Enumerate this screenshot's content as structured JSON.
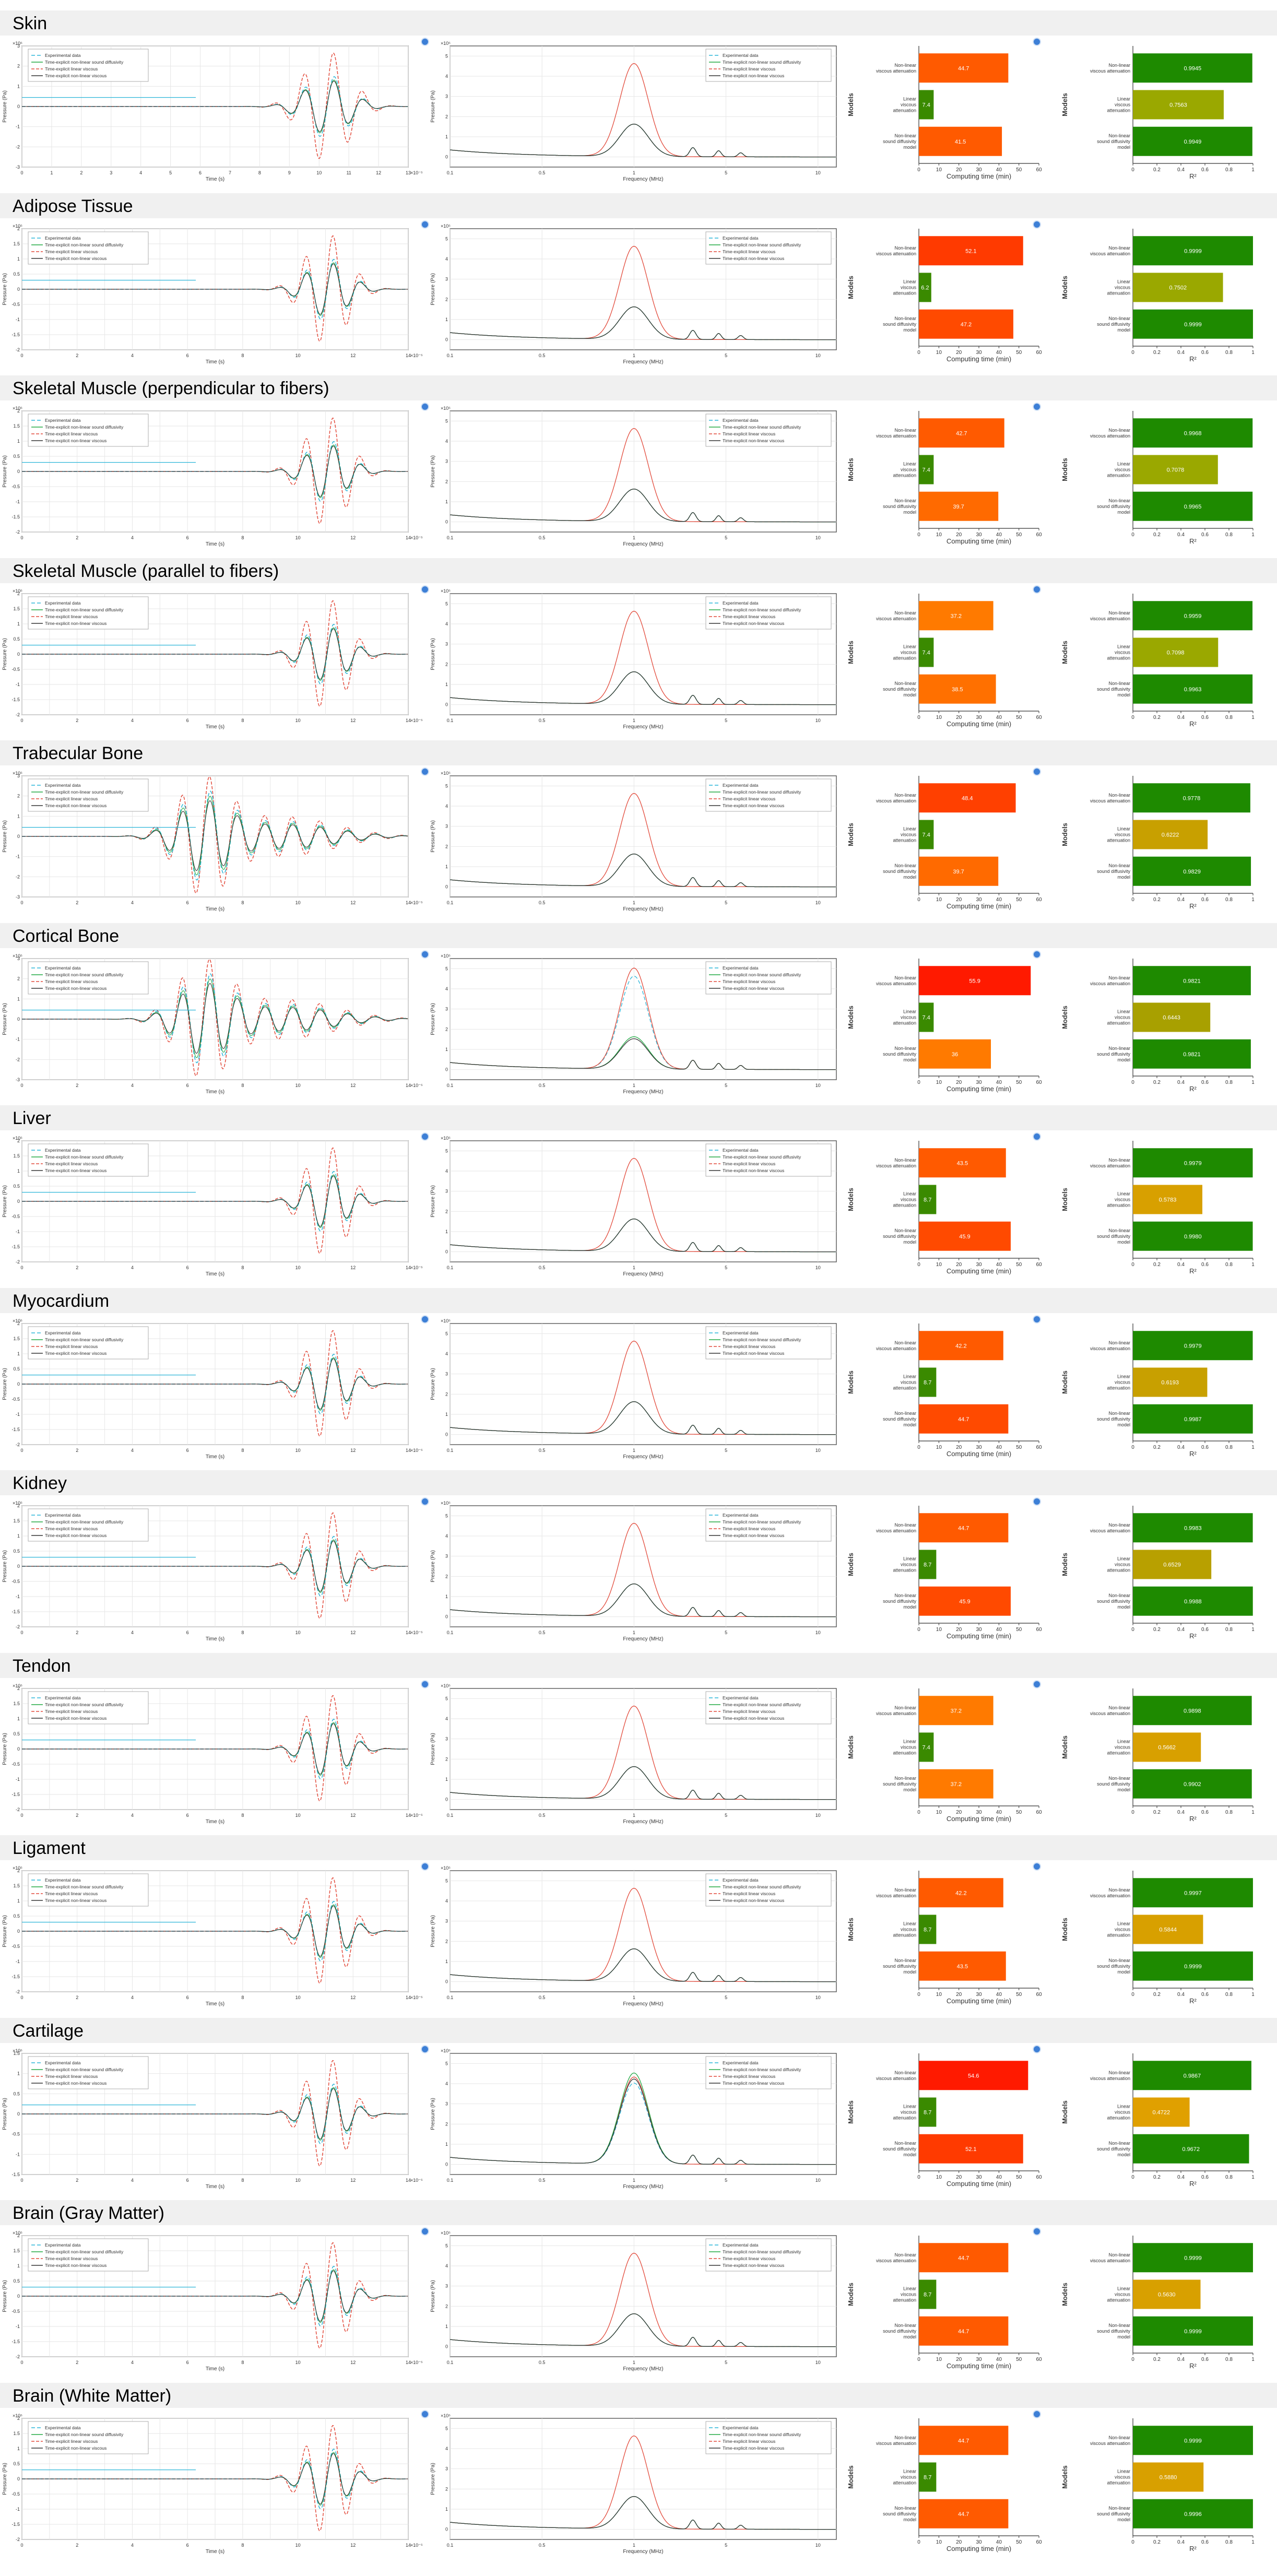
{
  "labels": {
    "legend": [
      "Experimental data",
      "Time-explicit non-linear sound diffusivity",
      "Time-explicit linear viscous",
      "Time-explicit non-linear viscous"
    ],
    "time_xlabel": "Time (s)",
    "time_ylabel": "Pressure (Pa)",
    "freq_xlabel": "Frequency (MHz)",
    "freq_ylabel": "Pressure (Pa)",
    "models_ylabel": "Models",
    "comp_xlabel": "Computing time (min)",
    "r2_xlabel": "R²",
    "time_xexp": "×10⁻⁵",
    "time_yexp": "×10⁵",
    "freq_yexp": "×10⁵",
    "model_names": [
      "Non-linear viscous attenuation",
      "Linear viscous attenuation",
      "Non-linear sound diffusivity model"
    ]
  },
  "colors": {
    "experimental": "#2ab5d8",
    "nl_diffusivity": "#22aa44",
    "linear_viscous": "#e24a3b",
    "nl_viscous": "#333333",
    "section_header_bg": "#f0f0f0"
  },
  "chart_data": [
    {
      "tissue": "Skin",
      "type": "bar",
      "time_axis": {
        "xmax": 13,
        "ymin": -3,
        "ymax": 3
      },
      "computing_time": {
        "values": [
          44.7,
          7.4,
          41.5
        ],
        "colors": [
          "#ff5a00",
          "#3a8a00",
          "#ff5a00"
        ]
      },
      "r2": {
        "values": [
          0.9945,
          0.7563,
          0.9949
        ],
        "colors": [
          "#1e8a00",
          "#9aa800",
          "#1e8a00"
        ]
      }
    },
    {
      "tissue": "Adipose Tissue",
      "type": "bar",
      "time_axis": {
        "xmax": 14,
        "ymin": -2,
        "ymax": 2
      },
      "computing_time": {
        "values": [
          52.1,
          6.2,
          47.2
        ],
        "colors": [
          "#ff3a00",
          "#3a8a00",
          "#ff4a00"
        ]
      },
      "r2": {
        "values": [
          0.9999,
          0.7502,
          0.9999
        ],
        "colors": [
          "#1e8a00",
          "#9aa800",
          "#1e8a00"
        ]
      }
    },
    {
      "tissue": "Skeletal Muscle (perpendicular to fibers)",
      "type": "bar",
      "time_axis": {
        "xmax": 14,
        "ymin": -2,
        "ymax": 2
      },
      "computing_time": {
        "values": [
          42.7,
          7.4,
          39.7
        ],
        "colors": [
          "#ff5a00",
          "#3a8a00",
          "#ff6a00"
        ]
      },
      "r2": {
        "values": [
          0.9968,
          0.7078,
          0.9965
        ],
        "colors": [
          "#1e8a00",
          "#9aa800",
          "#1e8a00"
        ]
      }
    },
    {
      "tissue": "Skeletal Muscle (parallel to fibers)",
      "type": "bar",
      "time_axis": {
        "xmax": 14,
        "ymin": -2,
        "ymax": 2
      },
      "computing_time": {
        "values": [
          37.2,
          7.4,
          38.5
        ],
        "colors": [
          "#ff7a00",
          "#3a8a00",
          "#ff7000"
        ]
      },
      "r2": {
        "values": [
          0.9959,
          0.7098,
          0.9963
        ],
        "colors": [
          "#1e8a00",
          "#9aa800",
          "#1e8a00"
        ]
      }
    },
    {
      "tissue": "Trabecular Bone",
      "type": "bar",
      "time_axis": {
        "xmax": 14,
        "ymin": -3,
        "ymax": 3
      },
      "computing_time": {
        "values": [
          48.4,
          7.4,
          39.7
        ],
        "colors": [
          "#ff4000",
          "#3a8a00",
          "#ff6a00"
        ]
      },
      "r2": {
        "values": [
          0.9778,
          0.6222,
          0.9829
        ],
        "colors": [
          "#1e8a00",
          "#c8a000",
          "#1e8a00"
        ]
      }
    },
    {
      "tissue": "Cortical Bone",
      "type": "bar",
      "time_axis": {
        "xmax": 14,
        "ymin": -3,
        "ymax": 3
      },
      "computing_time": {
        "values": [
          55.9,
          7.4,
          36
        ],
        "colors": [
          "#ff1a00",
          "#3a8a00",
          "#ff7a00"
        ]
      },
      "r2": {
        "values": [
          0.9821,
          0.6443,
          0.9821
        ],
        "colors": [
          "#1e8a00",
          "#a8a000",
          "#1e8a00"
        ]
      }
    },
    {
      "tissue": "Liver",
      "type": "bar",
      "time_axis": {
        "xmax": 14,
        "ymin": -2,
        "ymax": 2
      },
      "computing_time": {
        "values": [
          43.5,
          8.7,
          45.9
        ],
        "colors": [
          "#ff5a00",
          "#3a8a00",
          "#ff4a00"
        ]
      },
      "r2": {
        "values": [
          0.9979,
          0.5783,
          0.998
        ],
        "colors": [
          "#1e8a00",
          "#d8a000",
          "#1e8a00"
        ]
      }
    },
    {
      "tissue": "Myocardium",
      "type": "bar",
      "time_axis": {
        "xmax": 14,
        "ymin": -2,
        "ymax": 2
      },
      "computing_time": {
        "values": [
          42.2,
          8.7,
          44.7
        ],
        "colors": [
          "#ff5a00",
          "#3a8a00",
          "#ff4a00"
        ]
      },
      "r2": {
        "values": [
          0.9979,
          0.6193,
          0.9987
        ],
        "colors": [
          "#1e8a00",
          "#c8a000",
          "#1e8a00"
        ]
      }
    },
    {
      "tissue": "Kidney",
      "type": "bar",
      "time_axis": {
        "xmax": 14,
        "ymin": -2,
        "ymax": 2
      },
      "computing_time": {
        "values": [
          44.7,
          8.7,
          45.9
        ],
        "colors": [
          "#ff5a00",
          "#3a8a00",
          "#ff4a00"
        ]
      },
      "r2": {
        "values": [
          0.9983,
          0.6529,
          0.9988
        ],
        "colors": [
          "#1e8a00",
          "#b8a000",
          "#1e8a00"
        ]
      }
    },
    {
      "tissue": "Tendon",
      "type": "bar",
      "time_axis": {
        "xmax": 14,
        "ymin": -2,
        "ymax": 2
      },
      "computing_time": {
        "values": [
          37.2,
          7.4,
          37.2
        ],
        "colors": [
          "#ff7a00",
          "#3a8a00",
          "#ff7a00"
        ]
      },
      "r2": {
        "values": [
          0.9898,
          0.5662,
          0.9902
        ],
        "colors": [
          "#1e8a00",
          "#d8a000",
          "#1e8a00"
        ]
      }
    },
    {
      "tissue": "Ligament",
      "type": "bar",
      "time_axis": {
        "xmax": 14,
        "ymin": -2,
        "ymax": 2
      },
      "computing_time": {
        "values": [
          42.2,
          8.7,
          43.5
        ],
        "colors": [
          "#ff5a00",
          "#3a8a00",
          "#ff5a00"
        ]
      },
      "r2": {
        "values": [
          0.9997,
          0.5844,
          0.9999
        ],
        "colors": [
          "#1e8a00",
          "#d8a000",
          "#1e8a00"
        ]
      }
    },
    {
      "tissue": "Cartilage",
      "type": "bar",
      "time_axis": {
        "xmax": 14,
        "ymin": -1.5,
        "ymax": 1.5
      },
      "computing_time": {
        "values": [
          54.6,
          8.7,
          52.1
        ],
        "colors": [
          "#ff1a00",
          "#3a8a00",
          "#ff3a00"
        ]
      },
      "r2": {
        "values": [
          0.9867,
          0.4722,
          0.9672
        ],
        "colors": [
          "#1e8a00",
          "#e0a000",
          "#1e8a00"
        ]
      }
    },
    {
      "tissue": "Brain (Gray Matter)",
      "type": "bar",
      "time_axis": {
        "xmax": 14,
        "ymin": -2,
        "ymax": 2
      },
      "computing_time": {
        "values": [
          44.7,
          8.7,
          44.7
        ],
        "colors": [
          "#ff5a00",
          "#3a8a00",
          "#ff5a00"
        ]
      },
      "r2": {
        "values": [
          0.9999,
          0.563,
          0.9999
        ],
        "colors": [
          "#1e8a00",
          "#d8a000",
          "#1e8a00"
        ]
      }
    },
    {
      "tissue": "Brain (White Matter)",
      "type": "bar",
      "time_axis": {
        "xmax": 14,
        "ymin": -2,
        "ymax": 2
      },
      "computing_time": {
        "values": [
          44.7,
          8.7,
          44.7
        ],
        "colors": [
          "#ff5a00",
          "#3a8a00",
          "#ff5a00"
        ]
      },
      "r2": {
        "values": [
          0.9999,
          0.588,
          0.9996
        ],
        "colors": [
          "#1e8a00",
          "#d8a000",
          "#1e8a00"
        ]
      }
    }
  ]
}
